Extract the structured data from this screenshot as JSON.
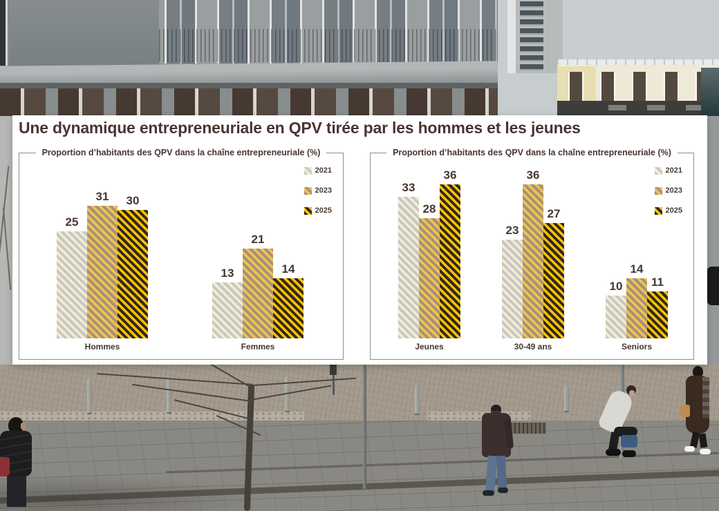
{
  "title": "Une dynamique entrepreneuriale en QPV tirée par les hommes et les jeunes",
  "colors": {
    "title_text": "#4b3433",
    "chart_text": "#473630",
    "box_border": "#8e8e8e",
    "panel_background": "#ffffff",
    "series": {
      "2021": {
        "base": "#c9c7c3",
        "stripe": "#f3eed3"
      },
      "2023": {
        "base": "#a8907d",
        "stripe": "#f0c64b"
      },
      "2025": {
        "base": "#33291c",
        "stripe": "#ffc503"
      }
    }
  },
  "chart_data": [
    {
      "type": "bar",
      "title": "Proportion d’habitants des QPV dans la chaîne entrepreneuriale (%)",
      "categories": [
        "Hommes",
        "Femmes"
      ],
      "series": [
        {
          "name": "2021",
          "values": [
            25,
            13
          ]
        },
        {
          "name": "2023",
          "values": [
            31,
            21
          ]
        },
        {
          "name": "2025",
          "values": [
            30,
            14
          ]
        }
      ],
      "ylim": [
        0,
        40
      ],
      "grid": false,
      "legend_position": "top-right",
      "value_labels": true,
      "bar_pattern": "diagonal-stripes"
    },
    {
      "type": "bar",
      "title": "Proportion d’habitants des QPV dans la chaîne entrepreneuriale (%)",
      "categories": [
        "Jeunes",
        "30-49 ans",
        "Seniors"
      ],
      "series": [
        {
          "name": "2021",
          "values": [
            33,
            23,
            10
          ]
        },
        {
          "name": "2023",
          "values": [
            28,
            36,
            14
          ]
        },
        {
          "name": "2025",
          "values": [
            36,
            27,
            11
          ]
        }
      ],
      "ylim": [
        0,
        40
      ],
      "grid": false,
      "legend_position": "top-right",
      "value_labels": true,
      "bar_pattern": "diagonal-stripes"
    }
  ]
}
